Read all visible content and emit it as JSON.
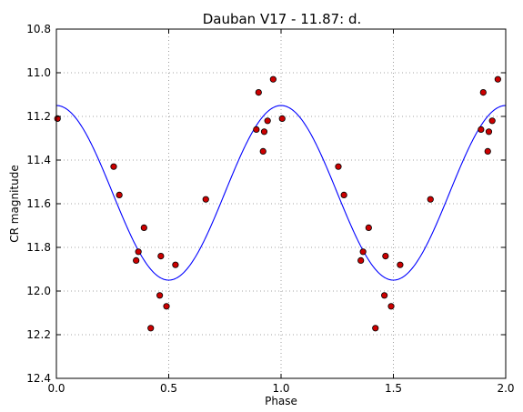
{
  "chart_data": {
    "type": "scatter",
    "title": "Dauban V17 - 11.87: d.",
    "xlabel": "Phase",
    "ylabel": "CR magnitude",
    "xlim": [
      0.0,
      2.0
    ],
    "ylim": [
      10.8,
      12.4
    ],
    "y_inverted": true,
    "grid": true,
    "x_ticks": [
      "0.0",
      "0.5",
      "1.0",
      "1.5",
      "2.0"
    ],
    "y_ticks": [
      "10.8",
      "11.0",
      "11.2",
      "11.4",
      "11.6",
      "11.8",
      "12.0",
      "12.2",
      "12.4"
    ],
    "colors": {
      "points": "#cc0000",
      "curve": "#0000ff",
      "grid": "#888888"
    },
    "series": [
      {
        "type": "scatter",
        "x": [
          0.005,
          0.255,
          0.28,
          0.355,
          0.365,
          0.39,
          0.42,
          0.46,
          0.465,
          0.49,
          0.53,
          0.665,
          0.89,
          0.9,
          0.925,
          0.92,
          0.94,
          0.965,
          1.005,
          1.255,
          1.28,
          1.355,
          1.365,
          1.39,
          1.42,
          1.46,
          1.465,
          1.49,
          1.53,
          1.665,
          1.89,
          1.9,
          1.925,
          1.92,
          1.94,
          1.965
        ],
        "y": [
          11.21,
          11.43,
          11.56,
          11.86,
          11.82,
          11.71,
          12.17,
          12.02,
          11.84,
          12.07,
          11.88,
          11.58,
          11.26,
          11.09,
          11.27,
          11.36,
          11.22,
          11.03,
          11.21,
          11.43,
          11.56,
          11.86,
          11.82,
          11.71,
          12.17,
          12.02,
          11.84,
          12.07,
          11.88,
          11.58,
          11.26,
          11.09,
          11.27,
          11.36,
          11.22,
          11.03
        ]
      },
      {
        "type": "line",
        "model": "sinusoid",
        "mean": 11.55,
        "amplitude": 0.4,
        "period_phase": 1.0,
        "min_at_phase": 0.0
      }
    ]
  }
}
